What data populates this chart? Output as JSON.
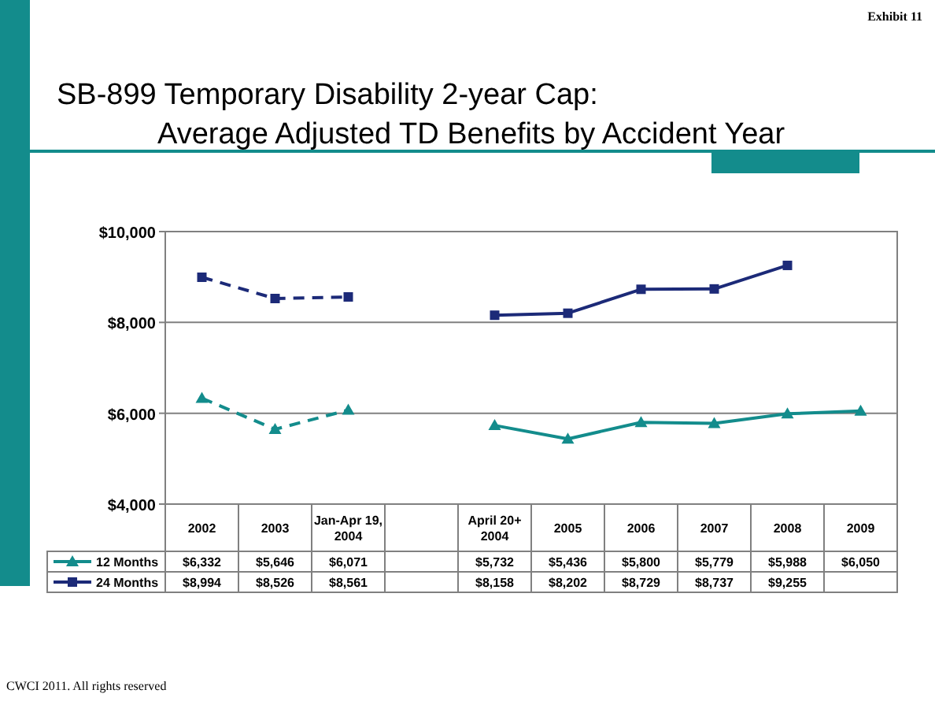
{
  "chart_data": {
    "type": "line",
    "title": "SB-899 Temporary Disability 2-year Cap:",
    "subtitle": "Average Adjusted TD Benefits by Accident Year",
    "annotations": [
      "Exhibit 11",
      "CWCI 2011.  All rights reserved"
    ],
    "categories": [
      "2002",
      "2003",
      "Jan-Apr 19, 2004",
      null,
      "April 20+ 2004",
      "2005",
      "2006",
      "2007",
      "2008",
      "2009"
    ],
    "series": [
      {
        "name": "12 Months",
        "color": "#138c8c",
        "line_style": [
          "dashed",
          "dashed",
          "dashed",
          null,
          "solid",
          "solid",
          "solid",
          "solid",
          "solid",
          "solid"
        ],
        "marker": "triangle",
        "values": [
          6332,
          5646,
          6071,
          null,
          5732,
          5436,
          5800,
          5779,
          5988,
          6050
        ],
        "value_labels": [
          "$6,332",
          "$5,646",
          "$6,071",
          null,
          "$5,732",
          "$5,436",
          "$5,800",
          "$5,779",
          "$5,988",
          "$6,050"
        ]
      },
      {
        "name": "24 Months",
        "color": "#1c2a78",
        "line_style": [
          "dashed",
          "dashed",
          "dashed",
          null,
          "solid",
          "solid",
          "solid",
          "solid",
          "solid",
          null
        ],
        "marker": "square",
        "values": [
          8994,
          8526,
          8561,
          null,
          8158,
          8202,
          8729,
          8737,
          9255,
          null
        ],
        "value_labels": [
          "$8,994",
          "$8,526",
          "$8,561",
          null,
          "$8,158",
          "$8,202",
          "$8,729",
          "$8,737",
          "$9,255",
          null
        ]
      }
    ],
    "ylim": [
      4000,
      10000
    ],
    "yticks": [
      {
        "value": 4000,
        "label": "$4,000"
      },
      {
        "value": 6000,
        "label": "$6,000"
      },
      {
        "value": 8000,
        "label": "$8,000"
      },
      {
        "value": 10000,
        "label": "$10,000"
      }
    ],
    "grid": "y",
    "legend": "bottom",
    "data_labels": true
  }
}
